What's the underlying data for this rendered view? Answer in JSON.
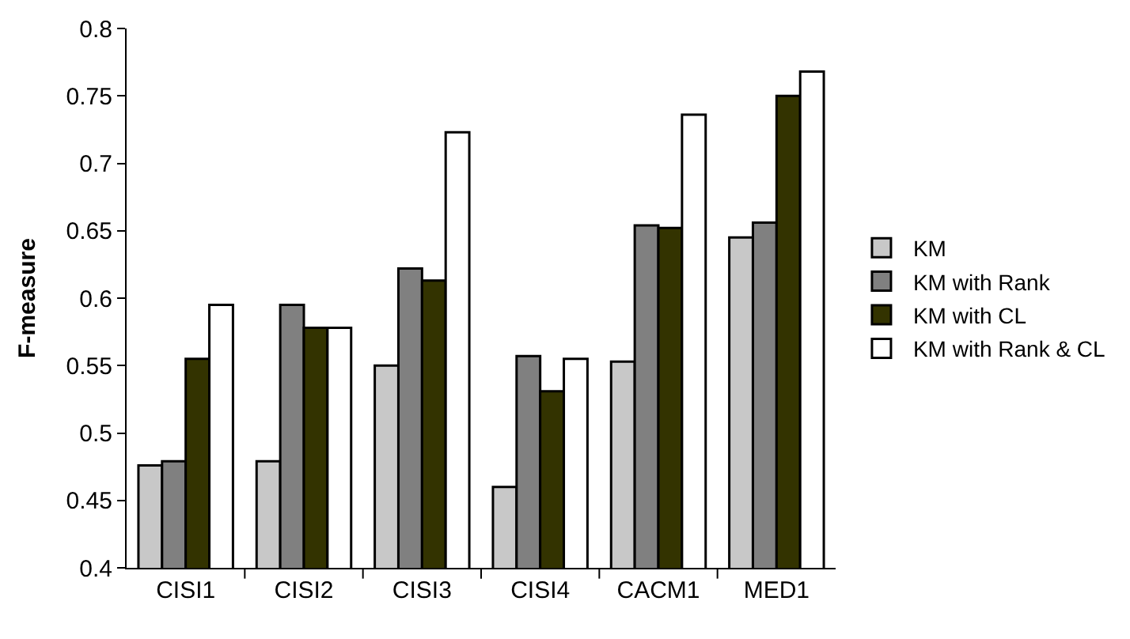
{
  "chart_data": {
    "type": "bar",
    "ylabel": "F-measure",
    "categories": [
      "CISI1",
      "CISI2",
      "CISI3",
      "CISI4",
      "CACM1",
      "MED1"
    ],
    "series": [
      {
        "name": "KM",
        "color": "#c8c8c8",
        "values": [
          0.476,
          0.479,
          0.55,
          0.46,
          0.553,
          0.645
        ]
      },
      {
        "name": "KM with Rank",
        "color": "#808080",
        "values": [
          0.479,
          0.595,
          0.622,
          0.557,
          0.654,
          0.656
        ]
      },
      {
        "name": "KM with CL",
        "color": "#333300",
        "values": [
          0.555,
          0.578,
          0.613,
          0.531,
          0.652,
          0.75
        ]
      },
      {
        "name": "KM with Rank & CL",
        "color": "#ffffff",
        "values": [
          0.595,
          0.578,
          0.723,
          0.555,
          0.736,
          0.768
        ]
      }
    ],
    "ylim": [
      0.4,
      0.8
    ],
    "yticks": [
      0.4,
      0.45,
      0.5,
      0.55,
      0.6,
      0.65,
      0.7,
      0.75,
      0.8
    ],
    "grid": false,
    "legend": "right"
  }
}
